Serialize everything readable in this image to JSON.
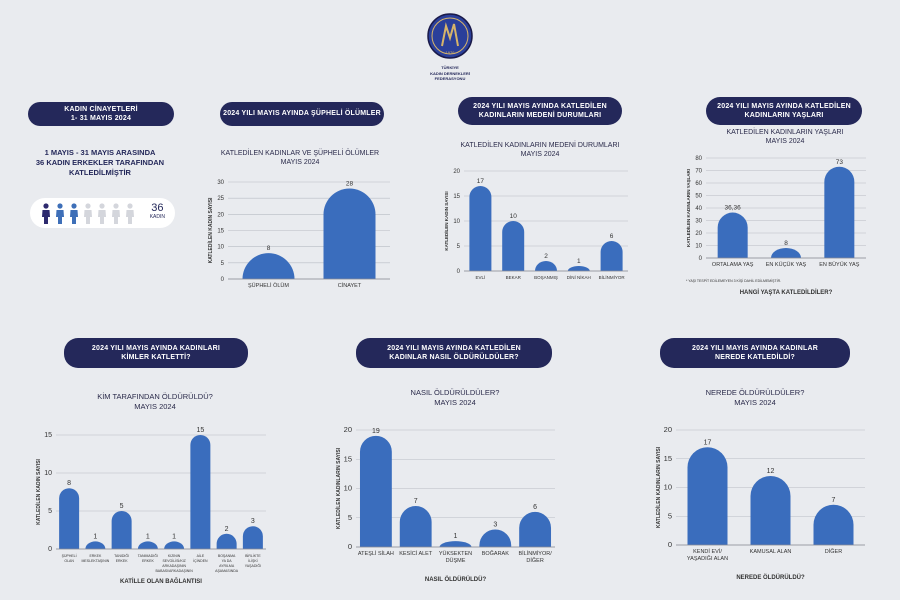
{
  "logo": {
    "line1": "TÜRKİYE",
    "line2": "KADIN DERNEKLERİ",
    "line3": "FEDERASYONU",
    "year": "1976"
  },
  "header_pills": {
    "p1_line1": "KADIN CİNAYETLERİ",
    "p1_line2": "1- 31 MAYIS 2024",
    "p2": "2024 YILI MAYIS AYINDA ŞÜPHELİ ÖLÜMLER",
    "p3_line1": "2024 YILI MAYIS AYINDA KATLEDİLEN",
    "p3_line2": "KADINLARIN MEDENİ DURUMLARI",
    "p4_line1": "2024 YILI MAYIS AYINDA KATLEDİLEN",
    "p4_line2": "KADINLARIN YAŞLARI",
    "p5_line1": "2024 YILI MAYIS AYINDA KADINLARI",
    "p5_line2": "KİMLER KATLETTİ?",
    "p6_line1": "2024 YILI MAYIS AYINDA KATLEDİLEN",
    "p6_line2": "KADINLAR NASIL ÖLDÜRÜLDÜLER?",
    "p7_line1": "2024 YILI MAYIS AYINDA KADINLAR",
    "p7_line2": "NEREDE KATLEDİLDİ?"
  },
  "summary": {
    "line1": "1 MAYIS - 31 MAYIS ARASINDA",
    "line2": "36 KADIN ERKEKLER TARAFINDAN",
    "line3": "KATLEDİLMİŞTİR",
    "count": "36",
    "count_label": "KADIN",
    "colors": {
      "filled": "#2d2a6e",
      "mid": "#3e6fb8",
      "empty": "#d4d6dc"
    }
  },
  "chart_data": [
    {
      "id": "supheli",
      "type": "bar",
      "title_line1": "KATLEDİLEN KADINLAR VE ŞÜPHELİ ÖLÜMLER",
      "title_line2": "MAYIS 2024",
      "ylabel": "KATLEDİLEN KADIN SAYISI",
      "xlabel": "",
      "ylim": [
        0,
        30
      ],
      "yticks": [
        0,
        5,
        10,
        15,
        20,
        25,
        30
      ],
      "categories": [
        "ŞÜPHELİ ÖLÜM",
        "CİNAYET"
      ],
      "values": [
        8,
        28
      ],
      "labels": [
        "8",
        "28"
      ],
      "color": "#3a6dbd"
    },
    {
      "id": "medeni",
      "type": "bar",
      "title_line1": "KATLEDİLEN KADINLARIN MEDENİ DURUMLARI",
      "title_line2": "MAYIS 2024",
      "ylabel": "KATLEDİLEN KADIN SAYISI",
      "xlabel": "",
      "ylim": [
        0,
        20
      ],
      "yticks": [
        0,
        5,
        10,
        15,
        20
      ],
      "categories": [
        "EVLİ",
        "BEKAR",
        "BOŞANMIŞ",
        "DİNİ NİKAH",
        "BİLİNMİYOR"
      ],
      "values": [
        17,
        10,
        2,
        1,
        6
      ],
      "labels": [
        "17",
        "10",
        "2",
        "1",
        "6"
      ],
      "color": "#3a6dbd"
    },
    {
      "id": "yas",
      "type": "bar",
      "title_line1": "KATLEDİLEN KADINLARIN YAŞLARI",
      "title_line2": "MAYIS 2024",
      "ylabel": "KATLEDİLEN KADINLARIN YAŞLARI",
      "xlabel": "HANGİ YAŞTA KATLEDİLDİLER?",
      "footnote": "* YAŞI TESPİT EDİLEMEYEN 3 KİŞİ DAHİL EDİLMEMİŞTİR.",
      "ylim": [
        0,
        80
      ],
      "yticks": [
        0,
        10,
        20,
        30,
        40,
        50,
        60,
        70,
        80
      ],
      "categories": [
        "ORTALAMA YAŞ",
        "EN KÜÇÜK YAŞ",
        "EN BÜYÜK YAŞ"
      ],
      "values": [
        36.36,
        8,
        73
      ],
      "labels": [
        "36,36",
        "8",
        "73"
      ],
      "color": "#3a6dbd"
    },
    {
      "id": "kimler",
      "type": "bar",
      "title_line1": "KİM TARAFINDAN ÖLDÜRÜLDÜ?",
      "title_line2": "MAYIS 2024",
      "ylabel": "KATLEDİLEN KADIN SAYISI",
      "xlabel": "KATİLLE OLAN BAĞLANTISI",
      "ylim": [
        0,
        15
      ],
      "yticks": [
        0,
        5,
        10,
        15
      ],
      "categories": [
        [
          "ŞÜPHELİ",
          "OLAN"
        ],
        [
          "ERKEK",
          "MESLEKTAŞININ"
        ],
        [
          "TANIDIĞI",
          "ERKEK"
        ],
        [
          "TANIMADIĞI",
          "ERKEK"
        ],
        [
          "KIZININ",
          "SEVGİLİSİ/KIZ",
          "ARKADAŞININ",
          "BABASI/ARKADAŞININ"
        ],
        [
          "AİLE",
          "İÇİNDEN"
        ],
        [
          "BOŞANMA",
          "YA DA",
          "AYRILMA",
          "AŞAMASINDA"
        ],
        [
          "BİRLİKTE",
          "İLİŞKİ",
          "YAŞADIĞI"
        ]
      ],
      "values": [
        8,
        1,
        5,
        1,
        1,
        15,
        2,
        3
      ],
      "labels": [
        "8",
        "1",
        "5",
        "1",
        "1",
        "15",
        "2",
        "3"
      ],
      "color": "#3a6dbd"
    },
    {
      "id": "nasil",
      "type": "bar",
      "title_line1": "NASIL ÖLDÜRÜLDÜLER?",
      "title_line2": "MAYIS 2024",
      "ylabel": "KATLEDİLEN KADINLARIN SAYISI",
      "xlabel": "NASIL ÖLDÜRÜLDÜ?",
      "ylim": [
        0,
        20
      ],
      "yticks": [
        0,
        5,
        10,
        15,
        20
      ],
      "categories": [
        [
          "ATEŞLİ SİLAH"
        ],
        [
          "KESİCİ ALET"
        ],
        [
          "YÜKSEKTEN",
          "DÜŞME"
        ],
        [
          "BOĞARAK"
        ],
        [
          "BİLİNMİYOR/",
          "DİĞER"
        ]
      ],
      "values": [
        19,
        7,
        1,
        3,
        6
      ],
      "labels": [
        "19",
        "7",
        "1",
        "3",
        "6"
      ],
      "color": "#3a6dbd"
    },
    {
      "id": "nerede",
      "type": "bar",
      "title_line1": "NEREDE ÖLDÜRÜLDÜLER?",
      "title_line2": "MAYIS 2024",
      "ylabel": "KATLEDİLEN KADINLARIN SAYISI",
      "xlabel": "NEREDE ÖLDÜRÜLDÜ?",
      "ylim": [
        0,
        20
      ],
      "yticks": [
        0,
        5,
        10,
        15,
        20
      ],
      "categories": [
        [
          "KENDİ EVİ/",
          "YAŞADIĞI ALAN"
        ],
        [
          "KAMUSAL ALAN"
        ],
        [
          "DİĞER"
        ]
      ],
      "values": [
        17,
        12,
        7
      ],
      "labels": [
        "17",
        "12",
        "7"
      ],
      "color": "#3a6dbd"
    }
  ]
}
